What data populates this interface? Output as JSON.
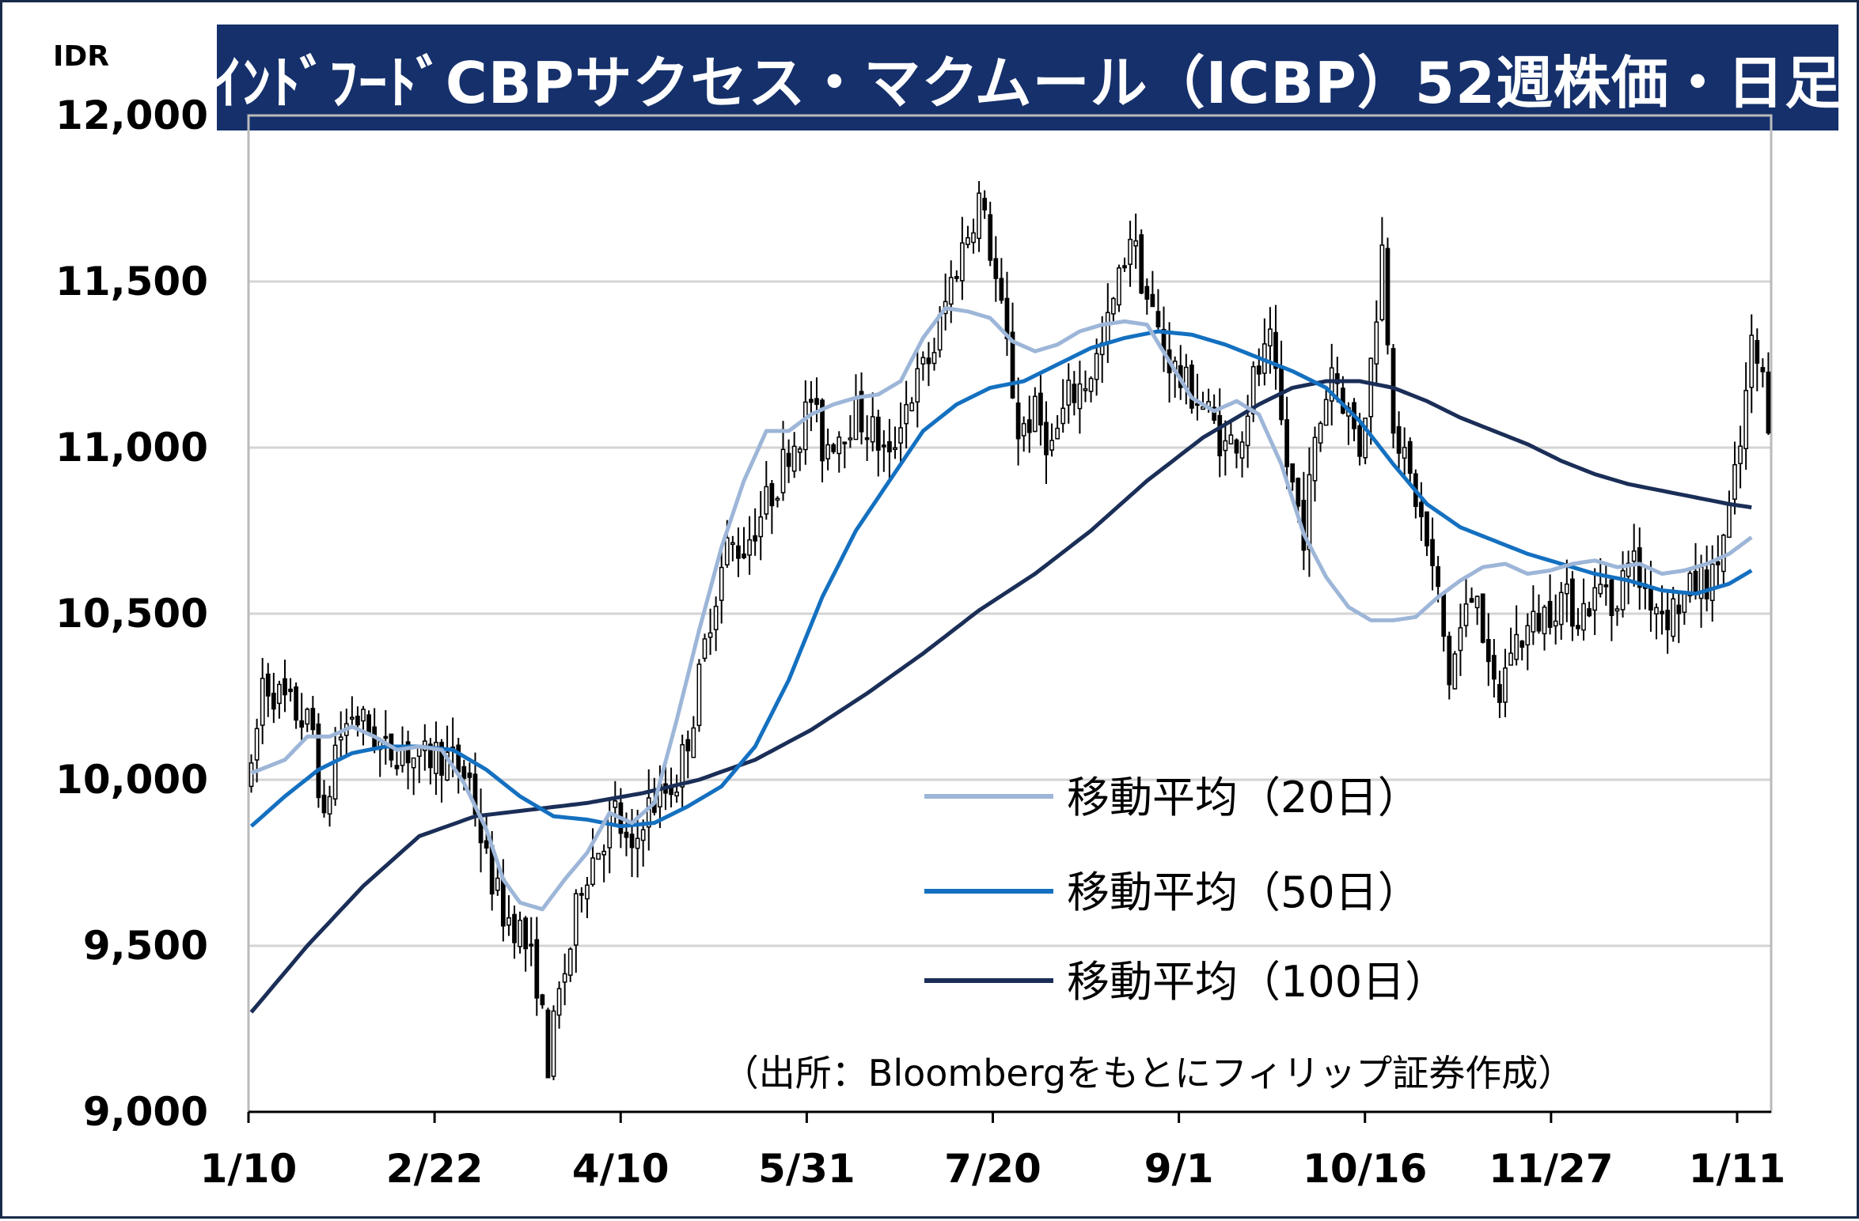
{
  "title": "ｲﾝﾄﾞﾌｰﾄﾞCBPサクセス・マクムール（ICBP）52週株価・日足",
  "unit": "IDR",
  "source_note": "（出所：Bloombergをもとにフィリップ証券作成）",
  "colors": {
    "title_bg": "#15306b",
    "ma20": "#9db6d8",
    "ma50": "#1470c0",
    "ma100": "#1a2e57",
    "candle": "#000000",
    "grid": "#d4d4d4"
  },
  "chart_data": {
    "type": "candlestick",
    "ylim": [
      9000,
      12000
    ],
    "y_ticks": [
      {
        "value": 12000,
        "label": "12,000"
      },
      {
        "value": 11500,
        "label": "11,500"
      },
      {
        "value": 11000,
        "label": "11,000"
      },
      {
        "value": 10500,
        "label": "10,500"
      },
      {
        "value": 10000,
        "label": "10,000"
      },
      {
        "value": 9500,
        "label": "9,500"
      },
      {
        "value": 9000,
        "label": "9,000"
      }
    ],
    "x_labels": [
      "1/10",
      "2/22",
      "4/10",
      "5/31",
      "7/20",
      "9/1",
      "10/16",
      "11/27",
      "1/11"
    ],
    "grid": "horizontal",
    "legend_position": "right-bottom",
    "legend": [
      {
        "label": "移動平均（20日）",
        "series": "ma20"
      },
      {
        "label": "移動平均（50日）",
        "series": "ma50"
      },
      {
        "label": "移動平均（100日）",
        "series": "ma100"
      }
    ],
    "price_path": [
      [
        0,
        10000
      ],
      [
        2,
        10300
      ],
      [
        5,
        10250
      ],
      [
        8,
        10200
      ],
      [
        11,
        10150
      ],
      [
        13,
        9850
      ],
      [
        15,
        10100
      ],
      [
        18,
        10200
      ],
      [
        21,
        10150
      ],
      [
        24,
        10080
      ],
      [
        27,
        10100
      ],
      [
        30,
        10050
      ],
      [
        33,
        10080
      ],
      [
        36,
        10050
      ],
      [
        39,
        10000
      ],
      [
        42,
        9750
      ],
      [
        45,
        9600
      ],
      [
        48,
        9550
      ],
      [
        51,
        9400
      ],
      [
        53,
        9150
      ],
      [
        55,
        9350
      ],
      [
        57,
        9500
      ],
      [
        59,
        9700
      ],
      [
        62,
        9800
      ],
      [
        65,
        9900
      ],
      [
        68,
        9750
      ],
      [
        70,
        9900
      ],
      [
        73,
        9950
      ],
      [
        76,
        10000
      ],
      [
        79,
        10200
      ],
      [
        82,
        10500
      ],
      [
        85,
        10700
      ],
      [
        88,
        10700
      ],
      [
        91,
        10800
      ],
      [
        94,
        10900
      ],
      [
        96,
        11000
      ],
      [
        98,
        11050
      ],
      [
        100,
        11150
      ],
      [
        102,
        11000
      ],
      [
        105,
        11050
      ],
      [
        108,
        11100
      ],
      [
        111,
        11050
      ],
      [
        114,
        10950
      ],
      [
        116,
        11100
      ],
      [
        119,
        11200
      ],
      [
        122,
        11300
      ],
      [
        125,
        11500
      ],
      [
        128,
        11650
      ],
      [
        130,
        11750
      ],
      [
        132,
        11600
      ],
      [
        135,
        11300
      ],
      [
        137,
        11050
      ],
      [
        140,
        11100
      ],
      [
        143,
        11000
      ],
      [
        146,
        11150
      ],
      [
        149,
        11200
      ],
      [
        152,
        11300
      ],
      [
        155,
        11500
      ],
      [
        157,
        11650
      ],
      [
        160,
        11450
      ],
      [
        163,
        11300
      ],
      [
        166,
        11200
      ],
      [
        169,
        11150
      ],
      [
        171,
        11100
      ],
      [
        174,
        11000
      ],
      [
        177,
        11050
      ],
      [
        179,
        11200
      ],
      [
        182,
        11300
      ],
      [
        185,
        10950
      ],
      [
        188,
        10750
      ],
      [
        190,
        11000
      ],
      [
        193,
        11250
      ],
      [
        196,
        11100
      ],
      [
        198,
        11000
      ],
      [
        200,
        11250
      ],
      [
        202,
        11600
      ],
      [
        204,
        11100
      ],
      [
        206,
        10950
      ],
      [
        208,
        10850
      ],
      [
        210,
        10700
      ],
      [
        212,
        10550
      ],
      [
        214,
        10300
      ],
      [
        216,
        10450
      ],
      [
        219,
        10600
      ],
      [
        221,
        10300
      ],
      [
        223,
        10250
      ],
      [
        225,
        10400
      ],
      [
        228,
        10450
      ],
      [
        231,
        10500
      ],
      [
        234,
        10550
      ],
      [
        237,
        10500
      ],
      [
        240,
        10550
      ],
      [
        242,
        10600
      ],
      [
        244,
        10500
      ],
      [
        246,
        10700
      ],
      [
        248,
        10600
      ],
      [
        250,
        10550
      ],
      [
        253,
        10500
      ],
      [
        256,
        10550
      ],
      [
        259,
        10600
      ],
      [
        261,
        10600
      ],
      [
        264,
        10800
      ],
      [
        266,
        11000
      ],
      [
        268,
        11300
      ],
      [
        270,
        11200
      ],
      [
        271,
        11100
      ]
    ],
    "ma20": [
      [
        0,
        10020
      ],
      [
        6,
        10060
      ],
      [
        10,
        10130
      ],
      [
        14,
        10130
      ],
      [
        18,
        10160
      ],
      [
        22,
        10130
      ],
      [
        26,
        10090
      ],
      [
        30,
        10100
      ],
      [
        34,
        10090
      ],
      [
        38,
        9990
      ],
      [
        42,
        9850
      ],
      [
        45,
        9700
      ],
      [
        48,
        9630
      ],
      [
        52,
        9610
      ],
      [
        56,
        9700
      ],
      [
        60,
        9780
      ],
      [
        64,
        9900
      ],
      [
        68,
        9870
      ],
      [
        72,
        9930
      ],
      [
        76,
        10180
      ],
      [
        80,
        10450
      ],
      [
        84,
        10700
      ],
      [
        88,
        10900
      ],
      [
        92,
        11050
      ],
      [
        96,
        11050
      ],
      [
        100,
        11100
      ],
      [
        104,
        11130
      ],
      [
        108,
        11150
      ],
      [
        112,
        11160
      ],
      [
        116,
        11200
      ],
      [
        120,
        11330
      ],
      [
        124,
        11420
      ],
      [
        128,
        11410
      ],
      [
        132,
        11390
      ],
      [
        136,
        11320
      ],
      [
        140,
        11290
      ],
      [
        144,
        11310
      ],
      [
        148,
        11350
      ],
      [
        152,
        11370
      ],
      [
        156,
        11380
      ],
      [
        160,
        11370
      ],
      [
        164,
        11260
      ],
      [
        168,
        11150
      ],
      [
        172,
        11110
      ],
      [
        176,
        11140
      ],
      [
        180,
        11100
      ],
      [
        184,
        10950
      ],
      [
        188,
        10740
      ],
      [
        192,
        10610
      ],
      [
        196,
        10520
      ],
      [
        200,
        10480
      ],
      [
        204,
        10480
      ],
      [
        208,
        10490
      ],
      [
        212,
        10550
      ],
      [
        216,
        10600
      ],
      [
        220,
        10640
      ],
      [
        224,
        10650
      ],
      [
        228,
        10620
      ],
      [
        232,
        10630
      ],
      [
        236,
        10650
      ],
      [
        240,
        10660
      ],
      [
        244,
        10640
      ],
      [
        248,
        10650
      ],
      [
        252,
        10620
      ],
      [
        256,
        10630
      ],
      [
        260,
        10650
      ],
      [
        264,
        10680
      ],
      [
        268,
        10730
      ]
    ],
    "ma50": [
      [
        0,
        9860
      ],
      [
        6,
        9950
      ],
      [
        12,
        10030
      ],
      [
        18,
        10080
      ],
      [
        24,
        10100
      ],
      [
        30,
        10100
      ],
      [
        36,
        10090
      ],
      [
        42,
        10030
      ],
      [
        48,
        9950
      ],
      [
        54,
        9890
      ],
      [
        60,
        9880
      ],
      [
        66,
        9860
      ],
      [
        72,
        9870
      ],
      [
        78,
        9920
      ],
      [
        84,
        9980
      ],
      [
        90,
        10100
      ],
      [
        96,
        10300
      ],
      [
        102,
        10550
      ],
      [
        108,
        10750
      ],
      [
        114,
        10900
      ],
      [
        120,
        11050
      ],
      [
        126,
        11130
      ],
      [
        132,
        11180
      ],
      [
        138,
        11200
      ],
      [
        144,
        11250
      ],
      [
        150,
        11300
      ],
      [
        156,
        11330
      ],
      [
        162,
        11350
      ],
      [
        168,
        11340
      ],
      [
        174,
        11310
      ],
      [
        180,
        11270
      ],
      [
        186,
        11230
      ],
      [
        192,
        11180
      ],
      [
        198,
        11080
      ],
      [
        204,
        10950
      ],
      [
        210,
        10830
      ],
      [
        216,
        10760
      ],
      [
        222,
        10720
      ],
      [
        228,
        10680
      ],
      [
        234,
        10650
      ],
      [
        240,
        10620
      ],
      [
        246,
        10600
      ],
      [
        252,
        10570
      ],
      [
        258,
        10560
      ],
      [
        264,
        10590
      ],
      [
        268,
        10630
      ]
    ],
    "ma100": [
      [
        0,
        9300
      ],
      [
        10,
        9500
      ],
      [
        20,
        9680
      ],
      [
        30,
        9830
      ],
      [
        40,
        9890
      ],
      [
        50,
        9910
      ],
      [
        60,
        9930
      ],
      [
        70,
        9960
      ],
      [
        80,
        10000
      ],
      [
        90,
        10060
      ],
      [
        100,
        10150
      ],
      [
        110,
        10260
      ],
      [
        120,
        10380
      ],
      [
        130,
        10510
      ],
      [
        140,
        10620
      ],
      [
        150,
        10750
      ],
      [
        160,
        10900
      ],
      [
        170,
        11030
      ],
      [
        180,
        11130
      ],
      [
        186,
        11180
      ],
      [
        192,
        11200
      ],
      [
        198,
        11200
      ],
      [
        204,
        11180
      ],
      [
        210,
        11140
      ],
      [
        216,
        11090
      ],
      [
        222,
        11050
      ],
      [
        228,
        11010
      ],
      [
        234,
        10960
      ],
      [
        240,
        10920
      ],
      [
        246,
        10890
      ],
      [
        252,
        10870
      ],
      [
        258,
        10850
      ],
      [
        264,
        10830
      ],
      [
        268,
        10820
      ]
    ]
  }
}
